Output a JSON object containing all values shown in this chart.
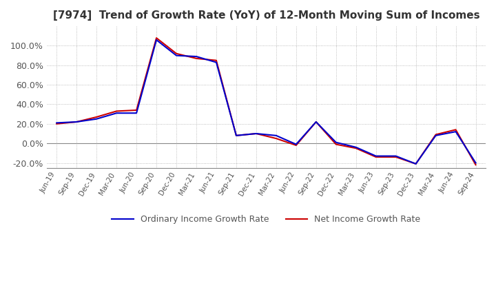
{
  "title": "[7974]  Trend of Growth Rate (YoY) of 12-Month Moving Sum of Incomes",
  "title_fontsize": 11,
  "ylim": [
    -0.25,
    1.2
  ],
  "yticks": [
    -0.2,
    0.0,
    0.2,
    0.4,
    0.6,
    0.8,
    1.0
  ],
  "background_color": "#ffffff",
  "grid_color": "#aaaaaa",
  "ordinary_color": "#0000cc",
  "net_color": "#cc0000",
  "legend_labels": [
    "Ordinary Income Growth Rate",
    "Net Income Growth Rate"
  ],
  "dates": [
    "Jun-19",
    "Sep-19",
    "Dec-19",
    "Mar-20",
    "Jun-20",
    "Sep-20",
    "Dec-20",
    "Mar-21",
    "Jun-21",
    "Sep-21",
    "Dec-21",
    "Mar-22",
    "Jun-22",
    "Sep-22",
    "Dec-22",
    "Mar-23",
    "Jun-23",
    "Sep-23",
    "Dec-23",
    "Mar-24",
    "Jun-24",
    "Sep-24"
  ],
  "ordinary_values": [
    0.21,
    0.22,
    0.25,
    0.31,
    0.31,
    1.06,
    0.9,
    0.89,
    0.83,
    0.08,
    0.1,
    0.08,
    -0.01,
    0.22,
    0.01,
    -0.04,
    -0.13,
    -0.13,
    -0.21,
    0.08,
    0.12,
    -0.2
  ],
  "net_values": [
    0.2,
    0.22,
    0.27,
    0.33,
    0.34,
    1.08,
    0.92,
    0.87,
    0.85,
    0.08,
    0.1,
    0.05,
    -0.02,
    0.22,
    -0.01,
    -0.05,
    -0.14,
    -0.14,
    -0.21,
    0.09,
    0.14,
    -0.22
  ]
}
